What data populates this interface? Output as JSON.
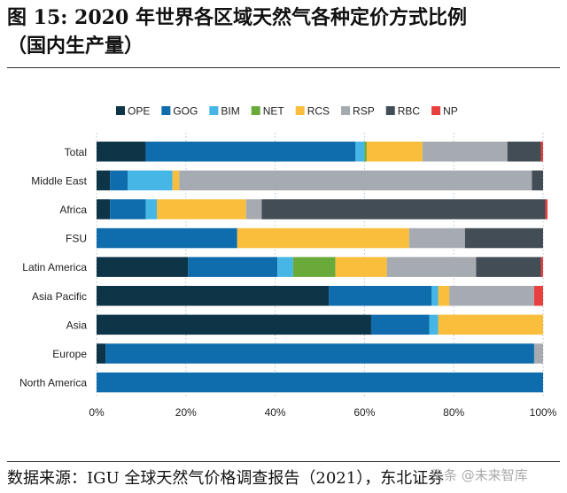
{
  "figure": {
    "title_line1": "图 15: 2020 年世界各区域天然气各种定价方式比例",
    "title_line2": "（国内生产量）",
    "source": "数据来源：IGU 全球天然气价格调查报告（2021），东北证券",
    "watermark": "头条 @未来智库"
  },
  "chart_data": {
    "type": "bar",
    "orientation": "horizontal",
    "stacked": true,
    "normalized": true,
    "categories": [
      "Total",
      "Middle East",
      "Africa",
      "FSU",
      "Latin America",
      "Asia Pacific",
      "Asia",
      "Europe",
      "North America"
    ],
    "series": [
      {
        "name": "OPE",
        "color": "#0d3447",
        "values": [
          11,
          3,
          3,
          0,
          20.5,
          52,
          61.5,
          2,
          0
        ]
      },
      {
        "name": "GOG",
        "color": "#0f6cad",
        "values": [
          47,
          4,
          8,
          31.5,
          20,
          23,
          13,
          96,
          100
        ]
      },
      {
        "name": "BIM",
        "color": "#45b6e6",
        "values": [
          2,
          10,
          2.5,
          0,
          3.5,
          1.5,
          2,
          0,
          0
        ]
      },
      {
        "name": "NET",
        "color": "#6aaa3a",
        "values": [
          0.5,
          0,
          0,
          0,
          9.5,
          0,
          0,
          0,
          0
        ]
      },
      {
        "name": "RCS",
        "color": "#f9be3c",
        "values": [
          12.5,
          1.5,
          20,
          38.5,
          11.5,
          2.5,
          23.5,
          0,
          0
        ]
      },
      {
        "name": "RSP",
        "color": "#a5abb1",
        "values": [
          19,
          79,
          3.5,
          12.5,
          20,
          19,
          0,
          2,
          0
        ]
      },
      {
        "name": "RBC",
        "color": "#434d55",
        "values": [
          7.5,
          2.5,
          63.5,
          17.5,
          14.5,
          0,
          0,
          0,
          0
        ]
      },
      {
        "name": "NP",
        "color": "#e8403f",
        "values": [
          0.5,
          0,
          0.5,
          0,
          0.5,
          2,
          0,
          0,
          0
        ]
      }
    ],
    "x_ticks": [
      "0%",
      "20%",
      "40%",
      "60%",
      "80%",
      "100%"
    ],
    "xlim": [
      0,
      100
    ],
    "grid": true,
    "legend_position": "top"
  }
}
